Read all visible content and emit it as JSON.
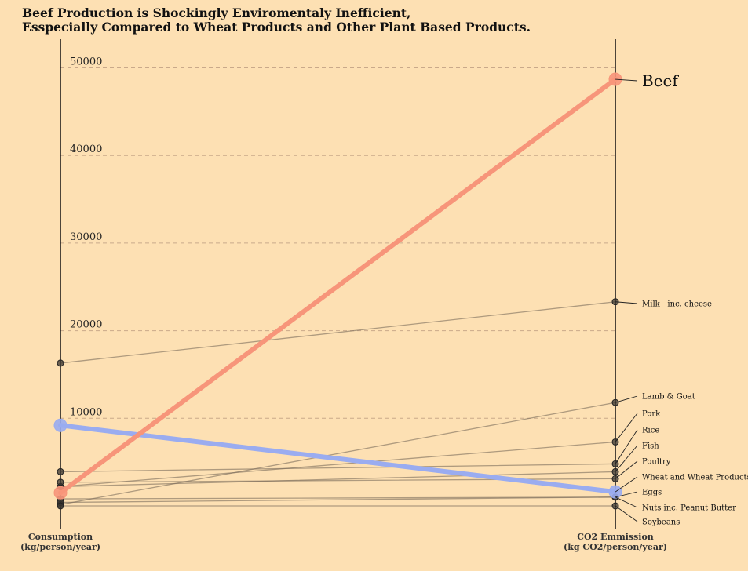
{
  "chart_data": {
    "type": "slope",
    "title": [
      "Beef Production is Shockingly Enviromentaly Inefficient,",
      "Esspecially Compared to Wheat Products and Other Plant Based Products."
    ],
    "left_axis_label": [
      "Consumption",
      "(kg/person/year)"
    ],
    "right_axis_label": [
      "CO2 Emmission",
      "(kg CO2/person/year)"
    ],
    "yticks": [
      10000,
      20000,
      30000,
      40000,
      50000
    ],
    "ylim": [
      -2000,
      53500
    ],
    "grid": "horizontal-dashed",
    "colors": {
      "beef": "#f7957a",
      "wheat": "#9aacf0",
      "other": "#7a6a5a",
      "point": "#3a3530"
    },
    "series": [
      {
        "name": "Beef",
        "consumption": 1500,
        "co2": 48700,
        "highlight": "beef"
      },
      {
        "name": "Milk - inc. cheese",
        "consumption": 16300,
        "co2": 23300
      },
      {
        "name": "Lamb & Goat",
        "consumption": 150,
        "co2": 11800
      },
      {
        "name": "Pork",
        "consumption": 2200,
        "co2": 7300
      },
      {
        "name": "Rice",
        "consumption": 3900,
        "co2": 4800
      },
      {
        "name": "Fish",
        "consumption": 2200,
        "co2": 3900
      },
      {
        "name": "Poultry",
        "consumption": 2700,
        "co2": 3100
      },
      {
        "name": "Wheat and Wheat Products",
        "consumption": 9200,
        "co2": 1600,
        "highlight": "wheat"
      },
      {
        "name": "Eggs",
        "consumption": 800,
        "co2": 1000
      },
      {
        "name": "Nuts inc. Peanut Butter",
        "consumption": 400,
        "co2": 1000
      },
      {
        "name": "Soybeans",
        "consumption": 0,
        "co2": 0
      }
    ]
  }
}
